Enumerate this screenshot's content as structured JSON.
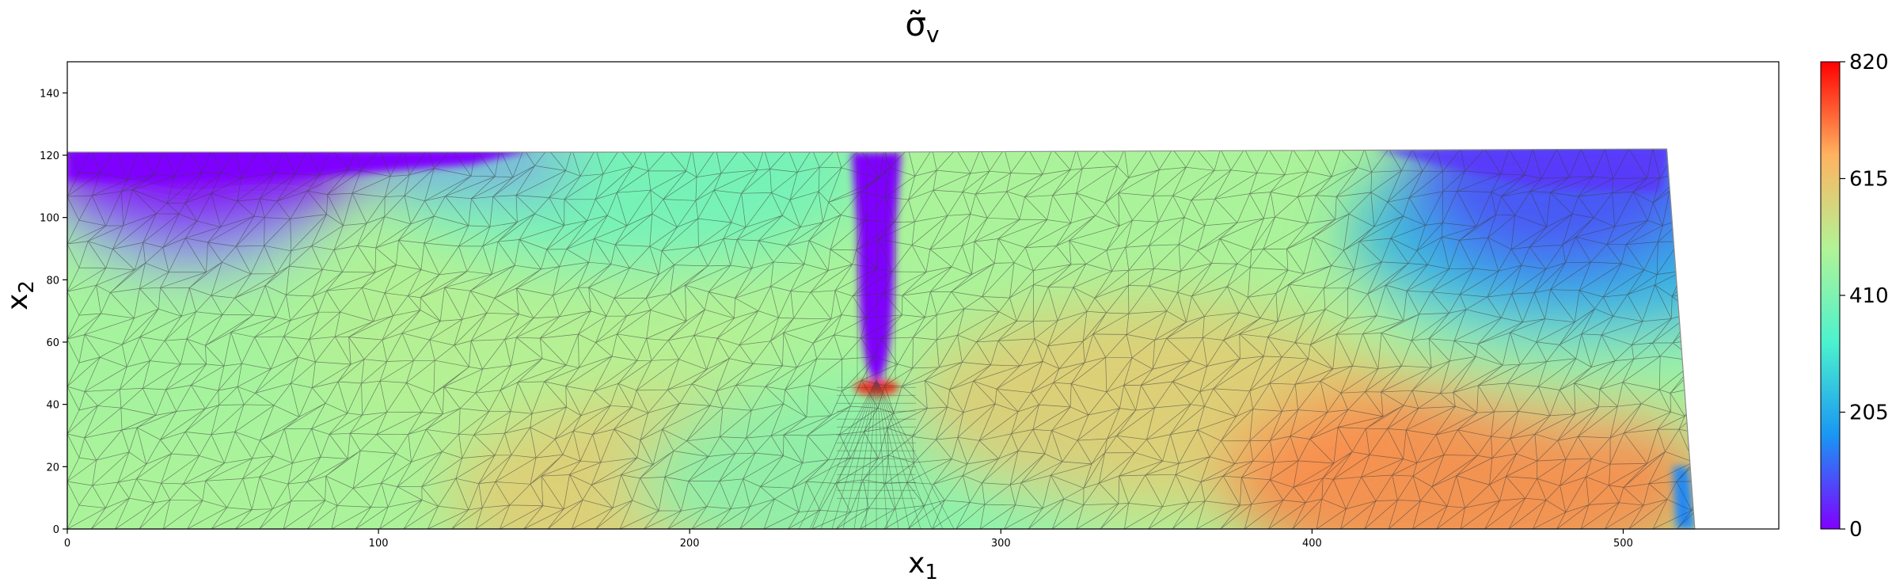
{
  "chart_data": {
    "type": "heatmap",
    "title": "σ̃",
    "title_subscript": "v",
    "xlabel": "x",
    "xlabel_subscript": "1",
    "ylabel": "x",
    "ylabel_subscript": "2",
    "xlim": [
      0,
      550
    ],
    "ylim": [
      0,
      150
    ],
    "x_ticks": [
      0,
      100,
      200,
      300,
      400,
      500
    ],
    "y_ticks": [
      0,
      20,
      40,
      60,
      80,
      100,
      120,
      140
    ],
    "colorbar": {
      "colormap": "rainbow",
      "range": [
        0,
        820
      ],
      "ticks": [
        0,
        205,
        410,
        615,
        820
      ]
    },
    "domain_outline": [
      [
        0,
        0
      ],
      [
        523,
        0
      ],
      [
        514,
        122
      ],
      [
        260,
        121
      ],
      [
        0,
        121
      ]
    ],
    "notch": {
      "x": 260,
      "tip_y": 48,
      "top_y": 121,
      "half_width": 8
    },
    "field_samples": [
      {
        "x": 30,
        "y": 60,
        "value": 470
      },
      {
        "x": 150,
        "y": 60,
        "value": 500
      },
      {
        "x": 200,
        "y": 10,
        "value": 600
      },
      {
        "x": 260,
        "y": 15,
        "value": 420
      },
      {
        "x": 260,
        "y": 45,
        "value": 820
      },
      {
        "x": 350,
        "y": 40,
        "value": 600
      },
      {
        "x": 450,
        "y": 15,
        "value": 700
      },
      {
        "x": 500,
        "y": 70,
        "value": 450
      },
      {
        "x": 490,
        "y": 95,
        "value": 200
      },
      {
        "x": 180,
        "y": 115,
        "value": 380
      },
      {
        "x": 40,
        "y": 118,
        "value": 0
      },
      {
        "x": 260,
        "y": 90,
        "value": 0
      },
      {
        "x": 480,
        "y": 115,
        "value": 80
      }
    ],
    "grid": false,
    "mesh": "triangular finite-element mesh overlay",
    "colors": {
      "c0": "#8000ff",
      "c1": "#1996f3",
      "c2": "#4cf2ce",
      "c3": "#b2f396",
      "c4": "#ffb360",
      "c5": "#ff0000",
      "mesh_line": "#3a3a3a"
    }
  }
}
